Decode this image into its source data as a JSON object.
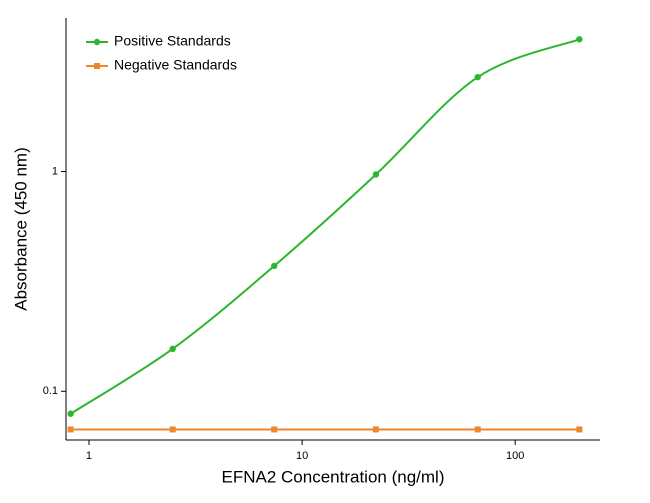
{
  "chart_data": {
    "type": "line",
    "x_label": "EFNA2 Concentration (ng/ml)",
    "y_label": "Absorbance (450 nm)",
    "x": [
      0.82,
      2.47,
      7.4,
      22.2,
      66.7,
      200
    ],
    "series": [
      {
        "name": "Positive Standards",
        "color": "#2db52d",
        "marker": "circle",
        "smooth": true,
        "values": [
          0.079,
          0.156,
          0.372,
          0.97,
          2.69,
          4.0
        ]
      },
      {
        "name": "Negative Standards",
        "color": "#f0862a",
        "marker": "square",
        "smooth": false,
        "values": [
          0.067,
          0.067,
          0.067,
          0.067,
          0.067,
          0.067
        ]
      }
    ],
    "xlim": [
      0.78,
      250
    ],
    "ylim": [
      0.06,
      5
    ],
    "xticks": [
      1,
      10,
      100
    ],
    "yticks": [
      0.1,
      1
    ],
    "xscale": "log",
    "yscale": "log",
    "legend": "upper left"
  }
}
